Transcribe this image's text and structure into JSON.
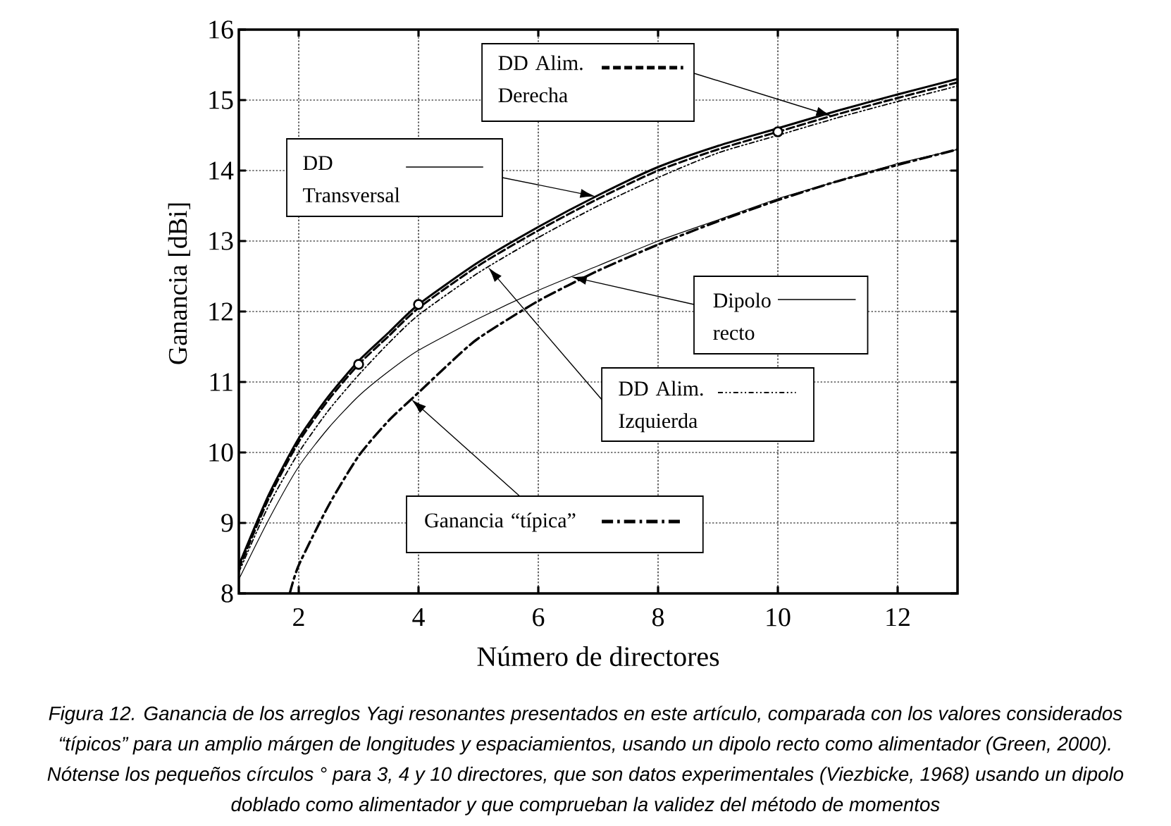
{
  "chart_data": {
    "type": "line",
    "xlabel": "Número de directores",
    "ylabel": "Ganancia [dBi]",
    "x": [
      1,
      1.5,
      2,
      2.5,
      3,
      3.5,
      4,
      5,
      6,
      7,
      8,
      9,
      10,
      11,
      12,
      13
    ],
    "series": [
      {
        "name": "DD Alim. Derecha",
        "color": "#000000",
        "line_style": "dashed",
        "values": [
          8.35,
          9.35,
          10.15,
          10.75,
          11.25,
          11.65,
          12.05,
          12.65,
          13.15,
          13.6,
          14.0,
          14.3,
          14.55,
          14.8,
          15.03,
          15.25
        ]
      },
      {
        "name": "DD Transversal",
        "color": "#000000",
        "line_style": "solid",
        "values": [
          8.4,
          9.4,
          10.2,
          10.8,
          11.3,
          11.7,
          12.1,
          12.7,
          13.2,
          13.65,
          14.05,
          14.35,
          14.6,
          14.85,
          15.08,
          15.3
        ]
      },
      {
        "name": "Dipolo recto",
        "color": "#000000",
        "line_style": "solid",
        "values": [
          8.2,
          9.05,
          9.8,
          10.35,
          10.8,
          11.15,
          11.45,
          11.9,
          12.3,
          12.65,
          13.0,
          13.3,
          13.6,
          13.85,
          14.1,
          14.3
        ]
      },
      {
        "name": "DD Alim. Izquierda",
        "color": "#000000",
        "line_style": "dashdotdot",
        "values": [
          8.3,
          9.25,
          10.0,
          10.6,
          11.1,
          11.55,
          11.95,
          12.55,
          13.05,
          13.5,
          13.9,
          14.25,
          14.5,
          14.75,
          14.98,
          15.2
        ]
      },
      {
        "name": "Ganancia “típica”",
        "color": "#000000",
        "line_style": "dashdot",
        "x": [
          1.85,
          2,
          2.5,
          3,
          3.5,
          4,
          4.5,
          5,
          6,
          7,
          8,
          9,
          10,
          11,
          12,
          13
        ],
        "values": [
          8.0,
          8.4,
          9.25,
          9.95,
          10.45,
          10.85,
          11.25,
          11.62,
          12.15,
          12.58,
          12.95,
          13.28,
          13.58,
          13.85,
          14.08,
          14.3
        ]
      },
      {
        "type": "scatter",
        "color": "#000000",
        "marker": "circle",
        "x": [
          3,
          4,
          10
        ],
        "values": [
          11.25,
          12.1,
          14.55
        ]
      }
    ],
    "xlim": [
      1,
      13
    ],
    "ylim": [
      8,
      16
    ],
    "xticks": [
      2,
      4,
      6,
      8,
      10,
      12
    ],
    "yticks": [
      8,
      9,
      10,
      11,
      12,
      13,
      14,
      15,
      16
    ],
    "grid": true,
    "legend": "center",
    "annotations": [
      "Figura 12. Ganancia de los arreglos Yagi resonantes presentados en este artículo, comparada con los valores considerados “típicos” para un amplio márgen de longitudes y espaciamientos, usando un dipolo recto como alimentador (Green, 2000). Nótense los pequeños círculos ° para 3, 4 y 10 directores, que son datos experimentales (Viezbicke, 1968) usando un dipolo doblado como alimentador y que comprueban la validez del método de momentos"
    ]
  }
}
